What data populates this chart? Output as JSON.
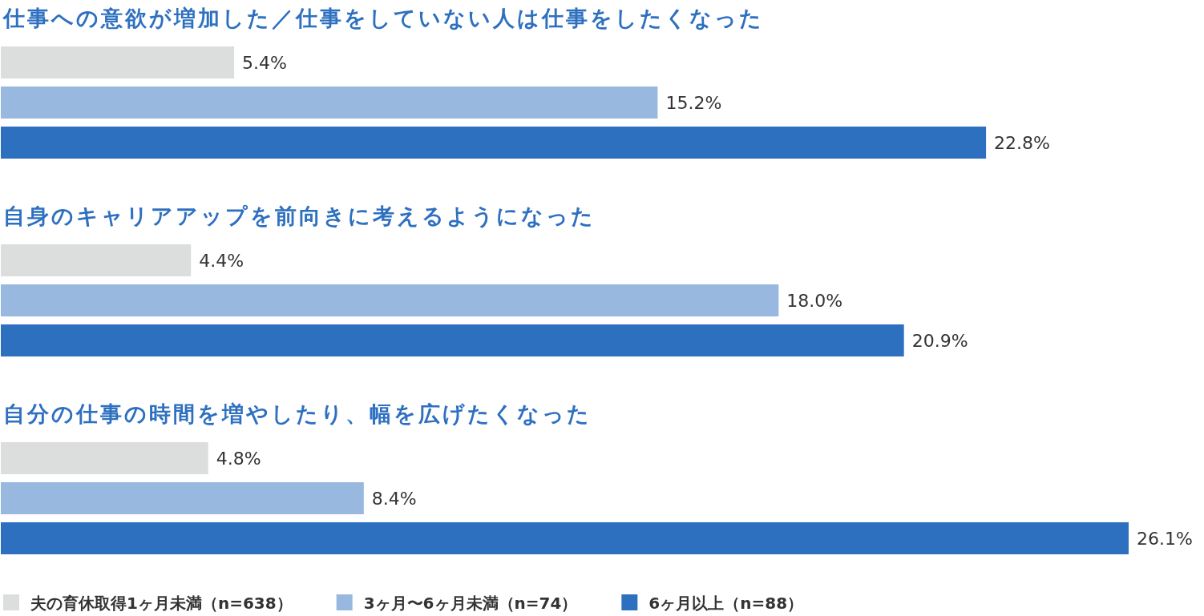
{
  "chart_data": {
    "type": "bar",
    "orientation": "horizontal",
    "legend": "bottom",
    "categories": [
      "仕事への意欲が増加した／仕事をしていない人は仕事をしたくなった",
      "自身のキャリアアップを前向きに考えるようになった",
      "自分の仕事の時間を増やしたり、幅を広げたくなった"
    ],
    "series": [
      {
        "name": "夫の育休取得1ヶ月未満（n=638）",
        "color": "#dcdddd",
        "values": [
          5.4,
          4.4,
          4.8
        ],
        "value_labels": [
          "5.4%",
          "4.4%",
          "4.8%"
        ]
      },
      {
        "name": "3ヶ月〜6ヶ月未満（n=74）",
        "color": "#98b8e0",
        "values": [
          15.2,
          18.0,
          8.4
        ],
        "value_labels": [
          "15.2%",
          "18.0%",
          "8.4%"
        ]
      },
      {
        "name": "6ヶ月以上（n=88）",
        "color": "#2e70c0",
        "values": [
          22.8,
          20.9,
          26.1
        ],
        "value_labels": [
          "22.8%",
          "20.9%",
          "26.1%"
        ]
      }
    ]
  }
}
